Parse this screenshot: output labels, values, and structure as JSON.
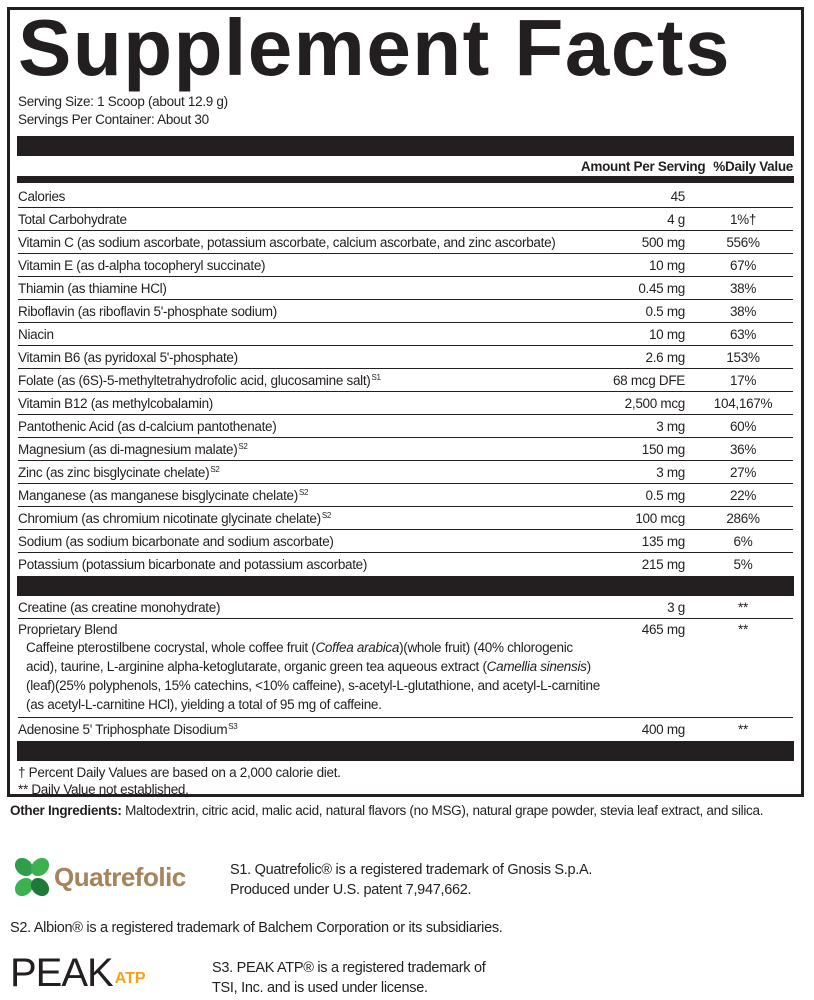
{
  "title": "Supplement Facts",
  "serving_size": "Serving Size: 1 Scoop (about 12.9 g)",
  "servings_per_container": "Servings Per Container: About 30",
  "header": {
    "amount": "Amount Per Serving",
    "dv": "%Daily Value"
  },
  "nutrients": [
    {
      "name": "Calories",
      "sup": "",
      "amount": "45",
      "dv": ""
    },
    {
      "name": "Total Carbohydrate",
      "sup": "",
      "amount": "4 g",
      "dv": "1%†"
    },
    {
      "name": "Vitamin C (as sodium ascorbate, potassium ascorbate, calcium ascorbate, and zinc ascorbate)",
      "sup": "",
      "amount": "500 mg",
      "dv": "556%"
    },
    {
      "name": "Vitamin E (as d-alpha tocopheryl succinate)",
      "sup": "",
      "amount": "10 mg",
      "dv": "67%"
    },
    {
      "name": "Thiamin (as thiamine HCl)",
      "sup": "",
      "amount": "0.45 mg",
      "dv": "38%"
    },
    {
      "name": "Riboflavin (as riboflavin 5'-phosphate sodium)",
      "sup": "",
      "amount": "0.5 mg",
      "dv": "38%"
    },
    {
      "name": "Niacin",
      "sup": "",
      "amount": "10 mg",
      "dv": "63%"
    },
    {
      "name": "Vitamin B6 (as pyridoxal 5'-phosphate)",
      "sup": "",
      "amount": "2.6 mg",
      "dv": "153%"
    },
    {
      "name": "Folate (as (6S)-5-methyltetrahydrofolic acid, glucosamine salt)",
      "sup": "S1",
      "amount": "68 mcg DFE",
      "dv": "17%"
    },
    {
      "name": "Vitamin B12 (as methylcobalamin)",
      "sup": "",
      "amount": "2,500 mcg",
      "dv": "104,167%"
    },
    {
      "name": "Pantothenic Acid (as d-calcium pantothenate)",
      "sup": "",
      "amount": "3 mg",
      "dv": "60%"
    },
    {
      "name": "Magnesium (as di-magnesium malate)",
      "sup": "S2",
      "amount": "150 mg",
      "dv": "36%"
    },
    {
      "name": "Zinc (as zinc bisglycinate chelate)",
      "sup": "S2",
      "amount": "3 mg",
      "dv": "27%"
    },
    {
      "name": "Manganese (as manganese bisglycinate chelate)",
      "sup": "S2",
      "amount": "0.5 mg",
      "dv": "22%"
    },
    {
      "name": "Chromium (as chromium nicotinate glycinate chelate)",
      "sup": "S2",
      "amount": "100 mcg",
      "dv": "286%"
    },
    {
      "name": "Sodium (as sodium bicarbonate and sodium ascorbate)",
      "sup": "",
      "amount": "135 mg",
      "dv": "6%"
    },
    {
      "name": "Potassium (potassium bicarbonate and potassium ascorbate)",
      "sup": "",
      "amount": "215 mg",
      "dv": "5%"
    }
  ],
  "creatine": {
    "name": "Creatine (as creatine monohydrate)",
    "amount": "3 g",
    "dv": "**"
  },
  "blend": {
    "name": "Proprietary Blend",
    "amount": "465 mg",
    "dv": "**",
    "d1": "Caffeine pterostilbene cocrystal, whole coffee fruit (",
    "i1": "Coffea arabica",
    "d2": ")(whole fruit) (40% chlorogenic acid), taurine, L-arginine alpha-ketoglutarate, organic green tea aqueous extract (",
    "i2": "Camellia sinensis",
    "d3": ")(leaf)(25% polyphenols, 15% catechins, <10% caffeine), s-acetyl-L-glutathione, and acetyl-L-carnitine (as acetyl-L-carnitine HCl), yielding a total of 95 mg of caffeine."
  },
  "atp": {
    "name": "Adenosine 5' Triphosphate Disodium",
    "sup": "S3",
    "amount": "400 mg",
    "dv": "**"
  },
  "footnotes": [
    "† Percent Daily Values are based on a 2,000 calorie diet.",
    "** Daily Value not established."
  ],
  "other_label": "Other Ingredients:",
  "other_text": " Maltodextrin, citric acid, malic acid, natural flavors (no MSG), natural grape powder, stevia leaf extract, and silica.",
  "notes": {
    "s1a": "S1. Quatrefolic® is a registered trademark of Gnosis S.p.A.",
    "s1b": "Produced under U.S. patent 7,947,662.",
    "s2": "S2. Albion® is a registered trademark of Balchem Corporation or its subsidiaries.",
    "s3a": "S3. PEAK ATP® is a registered trademark of",
    "s3b": "TSI, Inc. and is used under license."
  },
  "logos": {
    "quatrefolic": "Quatrefolic",
    "peak": "PEAK",
    "atp": "ATP"
  },
  "colors": {
    "ink": "#231f20",
    "quatrefolic_brown": "#a6835a",
    "clover_green": "#2e9e4a",
    "atp_orange": "#f7a11a"
  }
}
